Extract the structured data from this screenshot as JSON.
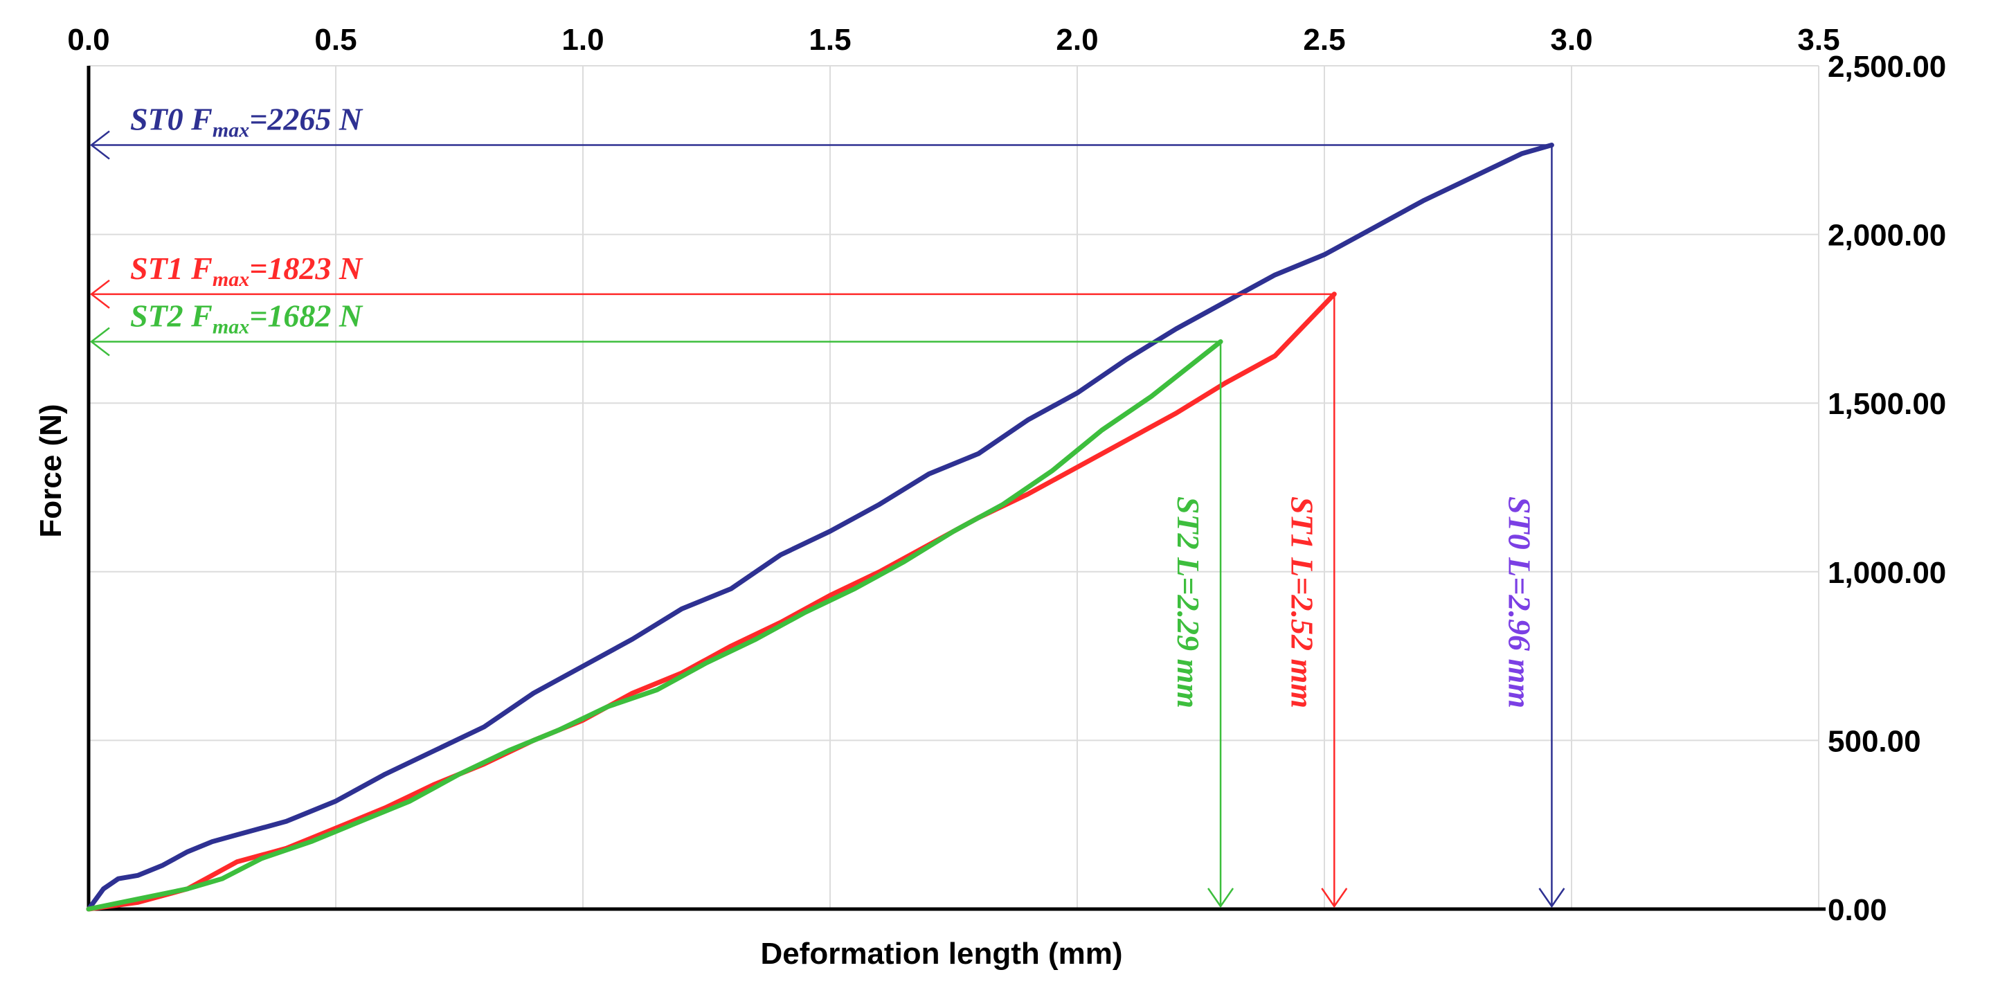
{
  "chart_data": {
    "type": "line",
    "xlabel": "Deformation length (mm)",
    "ylabel": "Force (N)",
    "xlim": [
      0,
      3.5
    ],
    "ylim": [
      0,
      2500
    ],
    "x_ticks": [
      "0.0",
      "0.5",
      "1.0",
      "1.5",
      "2.0",
      "2.5",
      "3.0",
      "3.5"
    ],
    "y_ticks": [
      "0.00",
      "500.00",
      "1,000.00",
      "1,500.00",
      "2,000.00",
      "2,500.00"
    ],
    "x_axis_position": "top",
    "y_axis_position": "right",
    "grid": true,
    "series": [
      {
        "name": "ST0",
        "color": "#2E3192",
        "x": [
          0,
          0.03,
          0.06,
          0.1,
          0.15,
          0.2,
          0.25,
          0.3,
          0.4,
          0.5,
          0.6,
          0.7,
          0.8,
          0.9,
          1.0,
          1.1,
          1.2,
          1.3,
          1.4,
          1.5,
          1.6,
          1.7,
          1.8,
          1.9,
          2.0,
          2.1,
          2.2,
          2.3,
          2.4,
          2.5,
          2.6,
          2.7,
          2.8,
          2.9,
          2.96
        ],
        "y": [
          0,
          60,
          90,
          100,
          130,
          170,
          200,
          220,
          260,
          320,
          400,
          470,
          540,
          640,
          720,
          800,
          890,
          950,
          1050,
          1120,
          1200,
          1290,
          1350,
          1450,
          1530,
          1630,
          1720,
          1800,
          1880,
          1940,
          2020,
          2100,
          2170,
          2240,
          2265
        ]
      },
      {
        "name": "ST1",
        "color": "#FF2A2A",
        "x": [
          0,
          0.1,
          0.2,
          0.25,
          0.3,
          0.4,
          0.5,
          0.6,
          0.7,
          0.8,
          0.9,
          1.0,
          1.1,
          1.2,
          1.3,
          1.4,
          1.5,
          1.6,
          1.7,
          1.8,
          1.9,
          2.0,
          2.1,
          2.2,
          2.3,
          2.4,
          2.52
        ],
        "y": [
          0,
          20,
          60,
          100,
          140,
          180,
          240,
          300,
          370,
          430,
          500,
          560,
          640,
          700,
          780,
          850,
          930,
          1000,
          1080,
          1160,
          1230,
          1310,
          1390,
          1470,
          1560,
          1640,
          1823
        ]
      },
      {
        "name": "ST2",
        "color": "#3DBE3D",
        "x": [
          0,
          0.1,
          0.2,
          0.27,
          0.35,
          0.45,
          0.55,
          0.65,
          0.75,
          0.85,
          0.95,
          1.05,
          1.15,
          1.25,
          1.35,
          1.45,
          1.55,
          1.65,
          1.75,
          1.85,
          1.95,
          2.05,
          2.15,
          2.29
        ],
        "y": [
          0,
          30,
          60,
          90,
          150,
          200,
          260,
          320,
          400,
          470,
          530,
          600,
          650,
          730,
          800,
          880,
          950,
          1030,
          1120,
          1200,
          1300,
          1420,
          1520,
          1682
        ]
      }
    ],
    "annotations": {
      "fmax": [
        {
          "series": "ST0",
          "label_prefix": "ST0  F",
          "label_sub": "max",
          "label_suffix": "=2265 N",
          "x": 2.96,
          "y": 2265
        },
        {
          "series": "ST1",
          "label_prefix": "ST1  F",
          "label_sub": "max",
          "label_suffix": "=1823 N",
          "x": 2.52,
          "y": 1823
        },
        {
          "series": "ST2",
          "label_prefix": "ST2  F",
          "label_sub": "max",
          "label_suffix": "=1682 N",
          "x": 2.29,
          "y": 1682
        }
      ],
      "length": [
        {
          "series": "ST0",
          "label": "ST0  L=2.96 mm",
          "x": 2.96,
          "color": "#7B3FE4"
        },
        {
          "series": "ST1",
          "label": "ST1  L=2.52 mm",
          "x": 2.52,
          "color": "#FF2A2A"
        },
        {
          "series": "ST2",
          "label": "ST2  L=2.29 mm",
          "x": 2.29,
          "color": "#3DBE3D"
        }
      ]
    }
  }
}
